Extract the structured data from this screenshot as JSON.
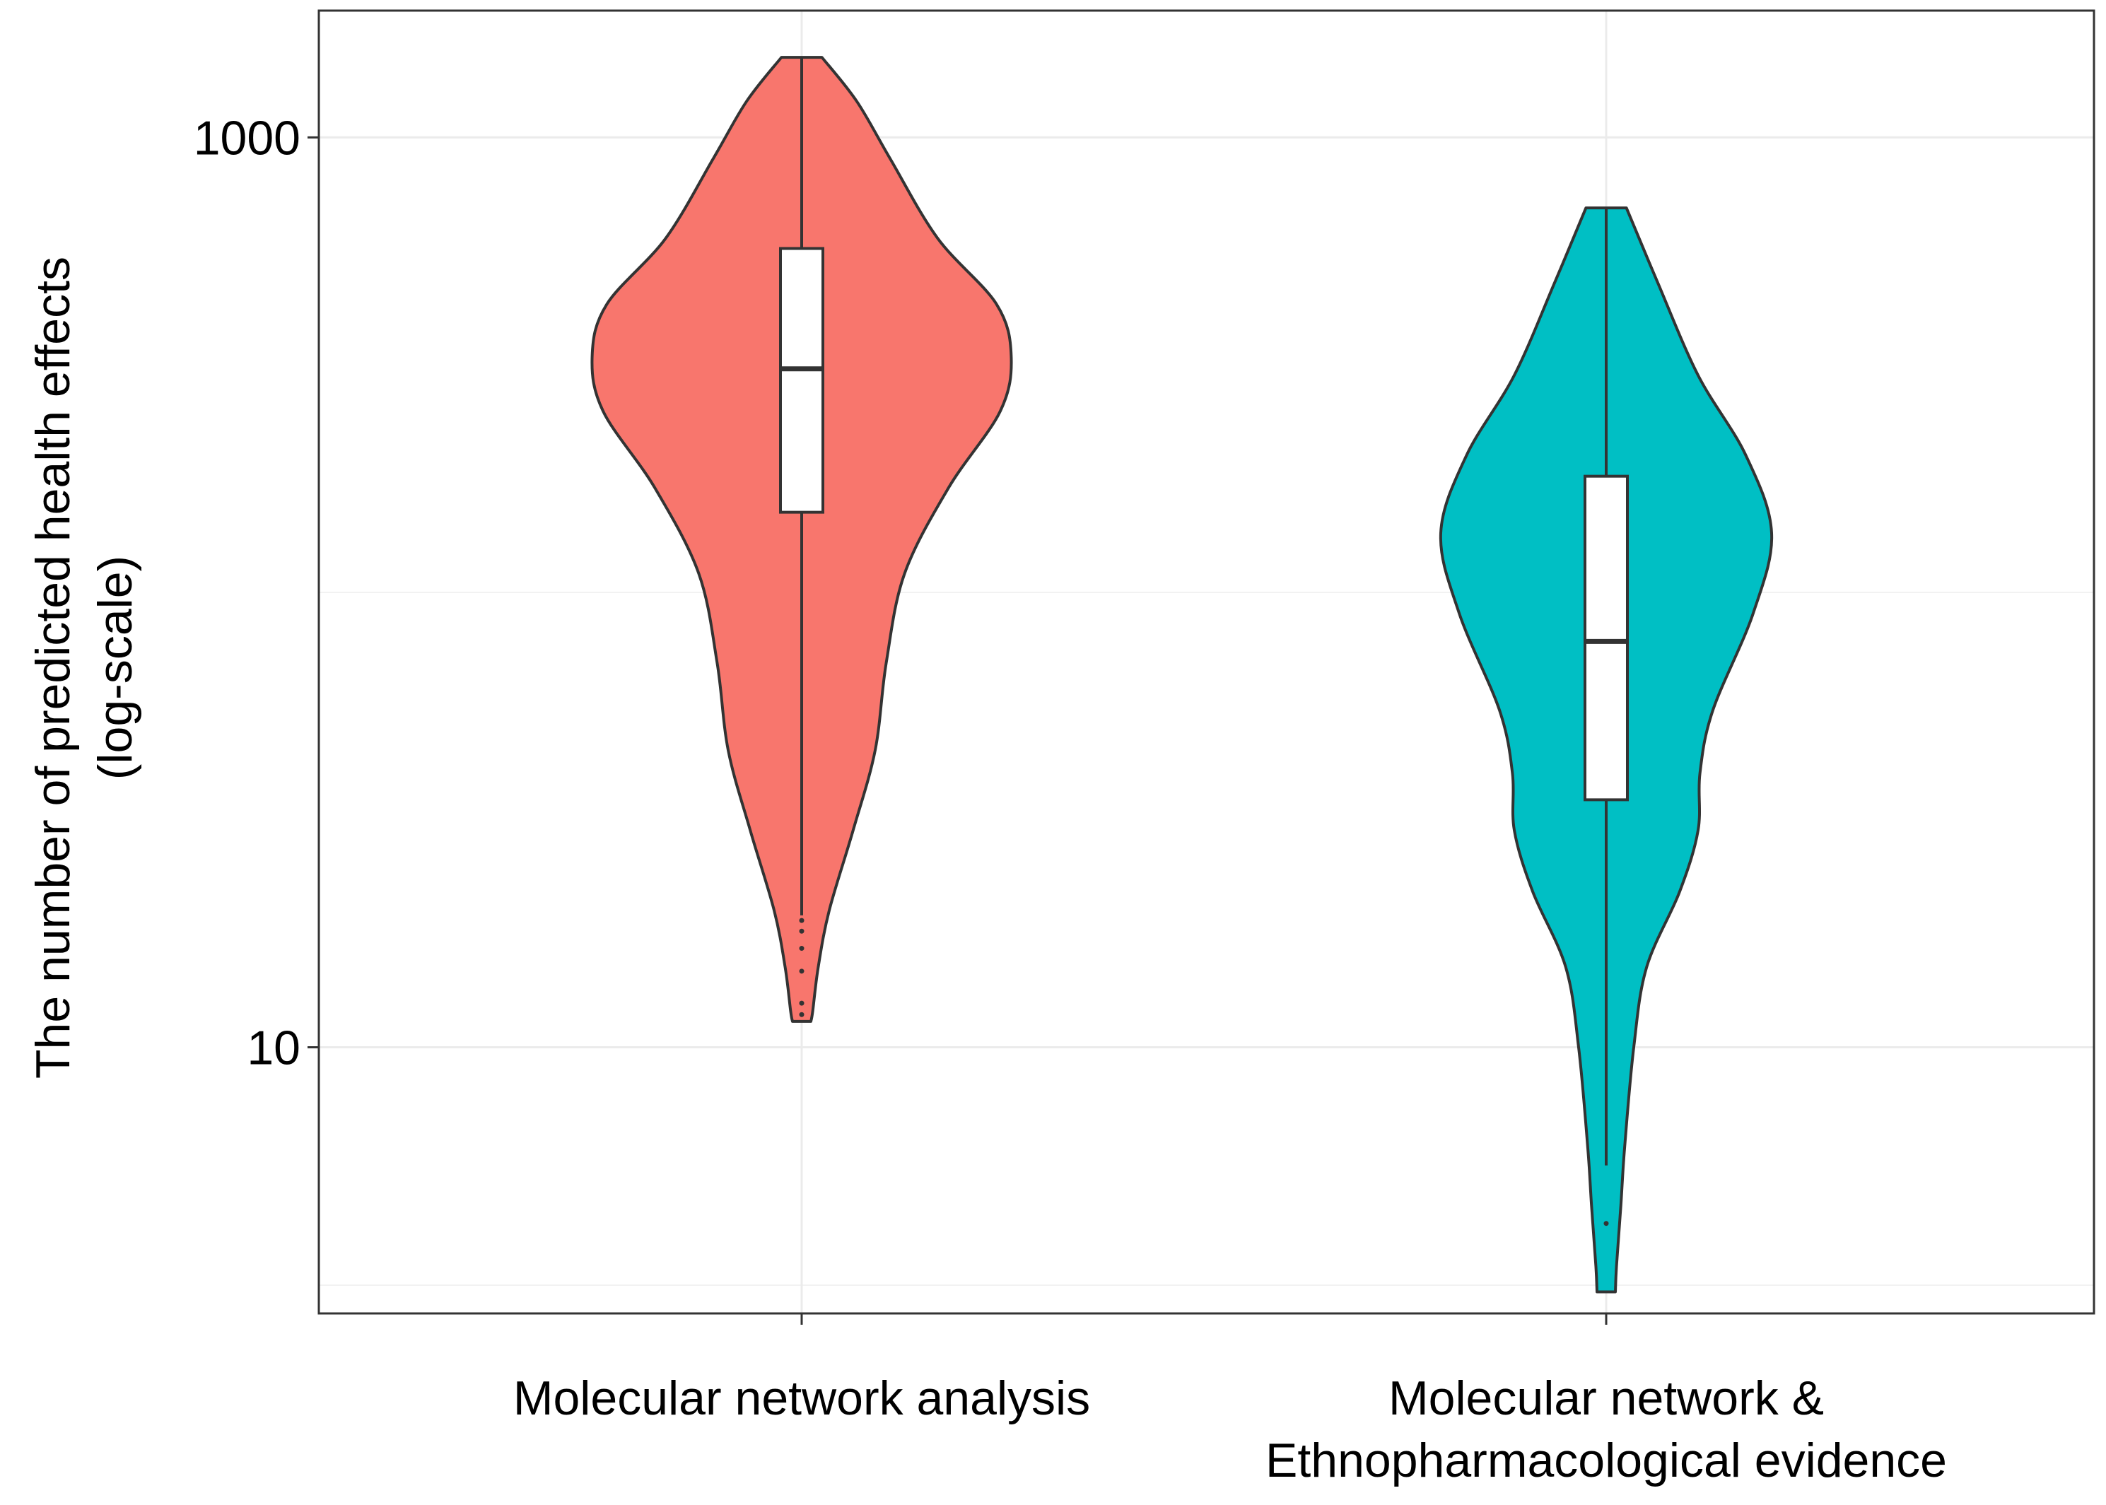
{
  "chart_data": {
    "type": "violin",
    "title": "",
    "ylabel_lines": [
      "The number of predicted health effects",
      "(log-scale)"
    ],
    "y_scale": "log10",
    "y_range": [
      2.6,
      1900
    ],
    "y_ticks": [
      {
        "value": 10,
        "label": "10"
      },
      {
        "value": 1000,
        "label": "1000"
      }
    ],
    "y_minor_gridlines": [
      100,
      3
    ],
    "grid": true,
    "legend": "none",
    "categories": [
      {
        "id": "mna",
        "label_lines": [
          "Molecular network analysis"
        ]
      },
      {
        "id": "mne",
        "label_lines": [
          "Molecular network &",
          "Ethnopharmacological evidence"
        ]
      }
    ],
    "series": [
      {
        "category": "mna",
        "color": "#F8766D",
        "min": 11.4,
        "max": 1500,
        "box": {
          "q1": 150,
          "median": 310,
          "q3": 570,
          "whisker_low": 19.5,
          "whisker_high": 1500
        },
        "outliers": [
          19,
          18,
          16.5,
          14.7,
          12.5,
          11.8
        ],
        "density": [
          [
            11.4,
            0.025
          ],
          [
            12,
            0.03
          ],
          [
            15,
            0.045
          ],
          [
            20,
            0.075
          ],
          [
            30,
            0.14
          ],
          [
            45,
            0.2
          ],
          [
            70,
            0.23
          ],
          [
            110,
            0.28
          ],
          [
            170,
            0.4
          ],
          [
            250,
            0.54
          ],
          [
            330,
            0.57
          ],
          [
            430,
            0.53
          ],
          [
            600,
            0.37
          ],
          [
            900,
            0.24
          ],
          [
            1200,
            0.15
          ],
          [
            1500,
            0.055
          ]
        ]
      },
      {
        "category": "mne",
        "color": "#00BFC4",
        "min": 2.9,
        "max": 700,
        "box": {
          "q1": 35,
          "median": 78,
          "q3": 180,
          "whisker_low": 5.5,
          "whisker_high": 700
        },
        "outliers": [
          4.1
        ],
        "density": [
          [
            2.9,
            0.025
          ],
          [
            3.3,
            0.028
          ],
          [
            4.5,
            0.04
          ],
          [
            6,
            0.05
          ],
          [
            10,
            0.075
          ],
          [
            15,
            0.11
          ],
          [
            22,
            0.2
          ],
          [
            30,
            0.25
          ],
          [
            40,
            0.255
          ],
          [
            55,
            0.29
          ],
          [
            90,
            0.4
          ],
          [
            135,
            0.45
          ],
          [
            200,
            0.38
          ],
          [
            300,
            0.25
          ],
          [
            480,
            0.14
          ],
          [
            700,
            0.055
          ]
        ]
      }
    ]
  }
}
